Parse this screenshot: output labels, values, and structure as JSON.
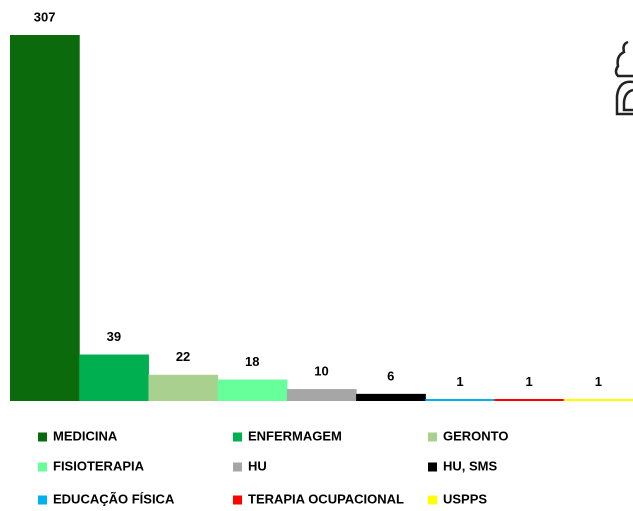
{
  "chart_data": {
    "type": "bar",
    "categories": [
      "MEDICINA",
      "ENFERMAGEM",
      "GERONTO",
      "FISIOTERAPIA",
      "HU",
      "HU, SMS",
      "EDUCAÇÃO FÍSICA",
      "TERAPIA OCUPACIONAL",
      "USPPS"
    ],
    "values": [
      307,
      39,
      22,
      18,
      10,
      6,
      1,
      1,
      1
    ],
    "colors": [
      "#0b6a0b",
      "#00b050",
      "#a9d08e",
      "#66ff99",
      "#a6a6a6",
      "#000000",
      "#00b0f0",
      "#ff0000",
      "#ffff00"
    ]
  }
}
